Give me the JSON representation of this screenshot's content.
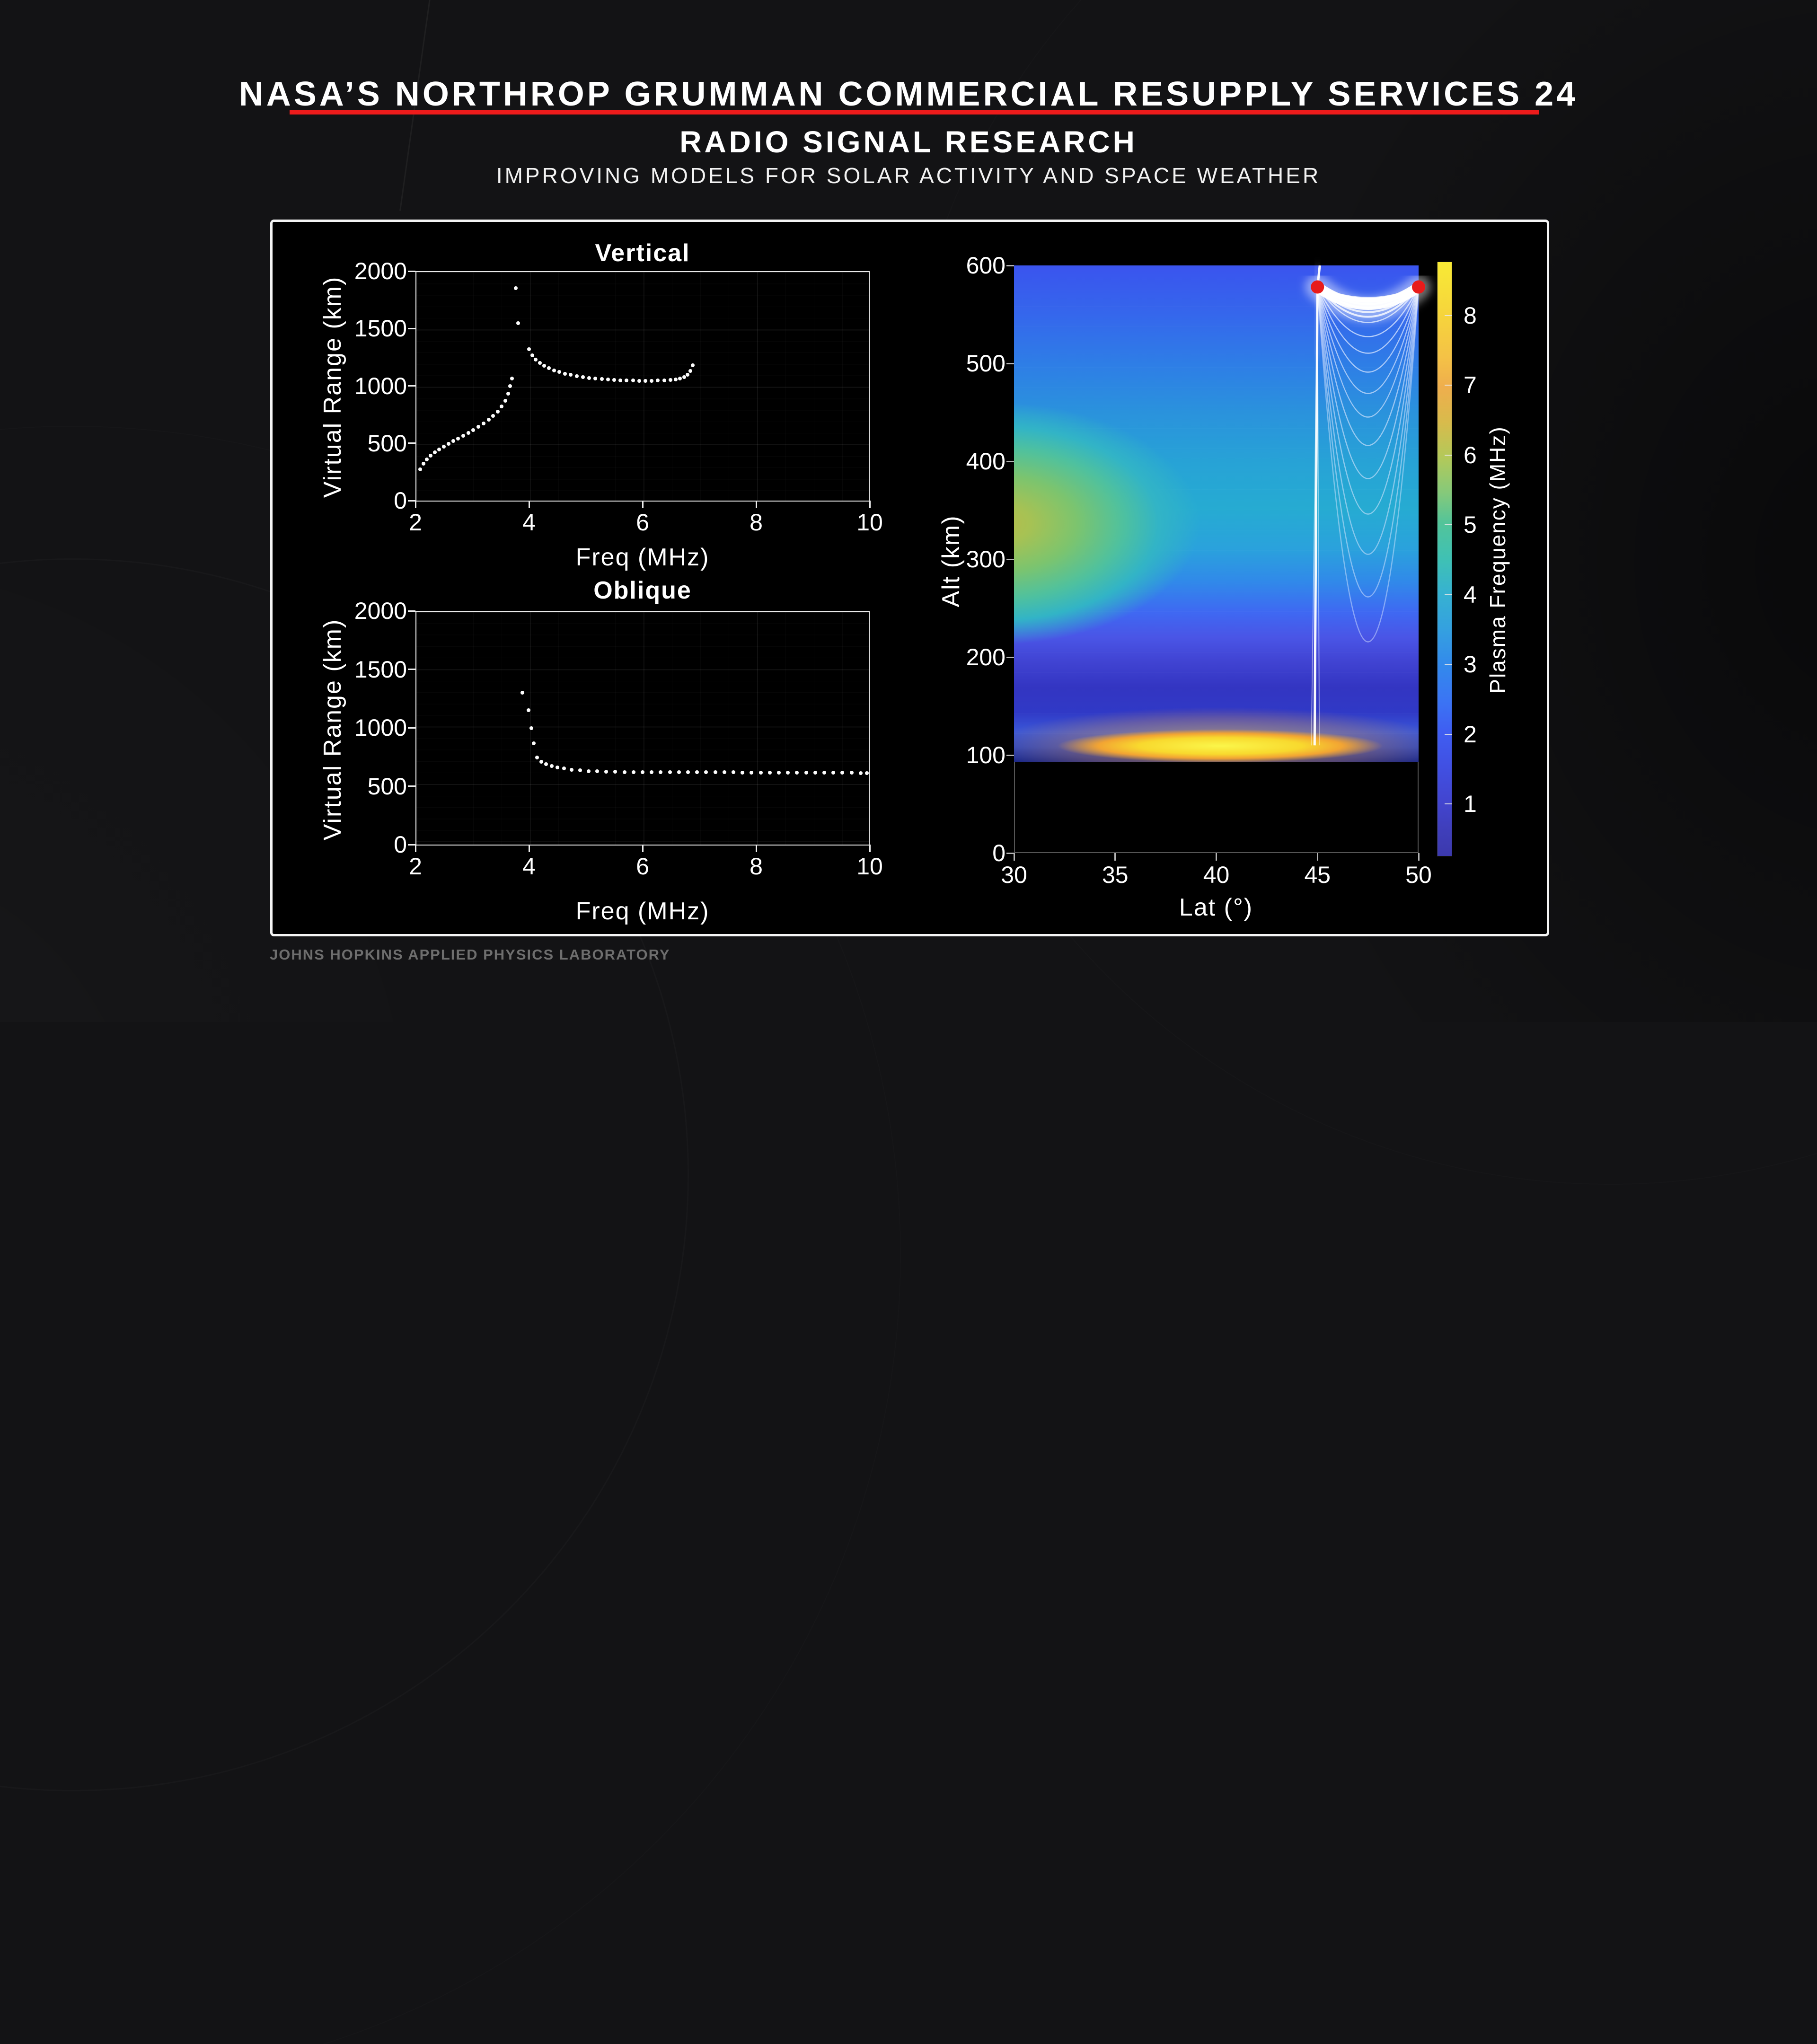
{
  "header": {
    "mission_title": "NASA’S NORTHROP GRUMMAN COMMERCIAL RESUPPLY SERVICES 24",
    "title": "RADIO SIGNAL RESEARCH",
    "subtitle": "IMPROVING MODELS FOR SOLAR ACTIVITY AND SPACE WEATHER",
    "accent_color": "#ee1b1b"
  },
  "footer": {
    "credit": "JOHNS HOPKINS APPLIED PHYSICS LABORATORY"
  },
  "chart_data": [
    {
      "id": "vertical-ionogram",
      "type": "scatter",
      "title": "Vertical",
      "xlabel": "Freq (MHz)",
      "ylabel": "Virtual Range (km)",
      "xlim": [
        2,
        10
      ],
      "ylim": [
        2000,
        0
      ],
      "xticks": [
        2,
        4,
        6,
        8,
        10
      ],
      "yticks": [
        0,
        500,
        1000,
        1500,
        2000
      ],
      "marker_color": "#fcfcfc",
      "grid": true,
      "series": [
        {
          "name": "low branch",
          "points": [
            [
              2.08,
              272
            ],
            [
              2.14,
              320
            ],
            [
              2.2,
              360
            ],
            [
              2.27,
              393
            ],
            [
              2.34,
              420
            ],
            [
              2.42,
              446
            ],
            [
              2.5,
              470
            ],
            [
              2.58,
              494
            ],
            [
              2.67,
              518
            ],
            [
              2.75,
              541
            ],
            [
              2.84,
              565
            ],
            [
              2.93,
              590
            ],
            [
              3.02,
              616
            ],
            [
              3.11,
              644
            ],
            [
              3.2,
              673
            ],
            [
              3.29,
              704
            ],
            [
              3.37,
              738
            ],
            [
              3.45,
              776
            ],
            [
              3.52,
              820
            ],
            [
              3.58,
              871
            ],
            [
              3.63,
              930
            ],
            [
              3.67,
              1000
            ],
            [
              3.7,
              1065
            ]
          ]
        },
        {
          "name": "spread echoes near critical frequency",
          "points": [
            [
              3.81,
              1545
            ],
            [
              3.77,
              1850
            ]
          ]
        },
        {
          "name": "high branch",
          "points": [
            [
              4.0,
              1318
            ],
            [
              4.06,
              1268
            ],
            [
              4.12,
              1230
            ],
            [
              4.19,
              1200
            ],
            [
              4.27,
              1176
            ],
            [
              4.35,
              1155
            ],
            [
              4.44,
              1136
            ],
            [
              4.53,
              1120
            ],
            [
              4.63,
              1107
            ],
            [
              4.73,
              1096
            ],
            [
              4.84,
              1086
            ],
            [
              4.95,
              1077
            ],
            [
              5.06,
              1070
            ],
            [
              5.17,
              1064
            ],
            [
              5.28,
              1059
            ],
            [
              5.39,
              1055
            ],
            [
              5.5,
              1052
            ],
            [
              5.61,
              1049
            ],
            [
              5.72,
              1047
            ],
            [
              5.83,
              1046
            ],
            [
              5.94,
              1045
            ],
            [
              6.05,
              1045
            ],
            [
              6.16,
              1045
            ],
            [
              6.27,
              1046
            ],
            [
              6.38,
              1048
            ],
            [
              6.49,
              1051
            ],
            [
              6.58,
              1056
            ],
            [
              6.66,
              1063
            ],
            [
              6.73,
              1075
            ],
            [
              6.79,
              1095
            ],
            [
              6.84,
              1130
            ],
            [
              6.88,
              1180
            ]
          ]
        }
      ]
    },
    {
      "id": "oblique-ionogram",
      "type": "scatter",
      "title": "Oblique",
      "xlabel": "Freq (MHz)",
      "ylabel": "Virtual Range (km)",
      "xlim": [
        2,
        10
      ],
      "ylim": [
        2000,
        0
      ],
      "xticks": [
        2,
        4,
        6,
        8,
        10
      ],
      "yticks": [
        0,
        500,
        1000,
        1500,
        2000
      ],
      "marker_color": "#fcfcfc",
      "grid": true,
      "series": [
        {
          "name": "onset",
          "points": [
            [
              3.88,
              1300
            ],
            [
              3.99,
              1148
            ],
            [
              4.04,
              995
            ],
            [
              4.08,
              866
            ]
          ]
        },
        {
          "name": "oblique trace",
          "points": [
            [
              4.14,
              745
            ],
            [
              4.22,
              710
            ],
            [
              4.3,
              690
            ],
            [
              4.4,
              673
            ],
            [
              4.5,
              661
            ],
            [
              4.62,
              650
            ],
            [
              4.75,
              641
            ],
            [
              4.9,
              634
            ],
            [
              5.05,
              629
            ],
            [
              5.2,
              626
            ],
            [
              5.36,
              624
            ],
            [
              5.52,
              622
            ],
            [
              5.68,
              621
            ],
            [
              5.84,
              620
            ],
            [
              6.0,
              620
            ],
            [
              6.16,
              620
            ],
            [
              6.32,
              620
            ],
            [
              6.48,
              619
            ],
            [
              6.64,
              619
            ],
            [
              6.8,
              619
            ],
            [
              6.96,
              619
            ],
            [
              7.12,
              618
            ],
            [
              7.28,
              618
            ],
            [
              7.44,
              618
            ],
            [
              7.6,
              618
            ],
            [
              7.76,
              617
            ],
            [
              7.92,
              617
            ],
            [
              8.08,
              617
            ],
            [
              8.24,
              617
            ],
            [
              8.4,
              616
            ],
            [
              8.56,
              616
            ],
            [
              8.72,
              616
            ],
            [
              8.88,
              615
            ],
            [
              9.04,
              615
            ],
            [
              9.2,
              615
            ],
            [
              9.36,
              614
            ],
            [
              9.52,
              614
            ],
            [
              9.68,
              614
            ],
            [
              9.84,
              613
            ],
            [
              9.95,
              613
            ]
          ]
        }
      ]
    },
    {
      "id": "plasma-frequency-map",
      "type": "heatmap",
      "xlabel": "Lat (°)",
      "ylabel": "Alt (km)",
      "xlim": [
        30,
        50
      ],
      "ylim": [
        0,
        600
      ],
      "xticks": [
        30,
        35,
        40,
        45,
        50
      ],
      "yticks": [
        0,
        100,
        200,
        300,
        400,
        500,
        600
      ],
      "field_extent": {
        "lat": [
          30,
          50
        ],
        "alt": [
          94,
          600
        ]
      },
      "colorbar": {
        "label": "Plasma Frequency (MHz)",
        "ticks": [
          1,
          2,
          3,
          4,
          5,
          6,
          7,
          8
        ],
        "range": [
          0.2,
          8.8
        ],
        "colors_low_to_high": [
          "#3c39ad",
          "#4245cf",
          "#3f5ef2",
          "#3389ec",
          "#34a0e0",
          "#36b1d2",
          "#3fc1b4",
          "#52c49a",
          "#84c97b",
          "#b2c95a",
          "#d8bb4c",
          "#efae4d",
          "#f4c246",
          "#f6d43c",
          "#f8ea35"
        ]
      },
      "features": {
        "f_layer_enhancement": {
          "lat": 30,
          "alt_km": 340,
          "peak_mhz": 6.5
        },
        "e_layer_band": {
          "lat_center": 40.5,
          "alt_km": 107,
          "lat_span": [
            33,
            48
          ],
          "peak_mhz": 8.5
        },
        "valley": {
          "alt_km": [
            140,
            210
          ],
          "mhz": 1.8
        },
        "topside_mhz": 2.8
      },
      "raytrace": {
        "transmitter_lat": 45,
        "receiver_lat": 50,
        "reflection_alt_km": 578,
        "vertical_beam_lat": 44.9,
        "ray_color": "#ffffff",
        "endpoint_marker_color": "#e81b1b"
      }
    }
  ]
}
